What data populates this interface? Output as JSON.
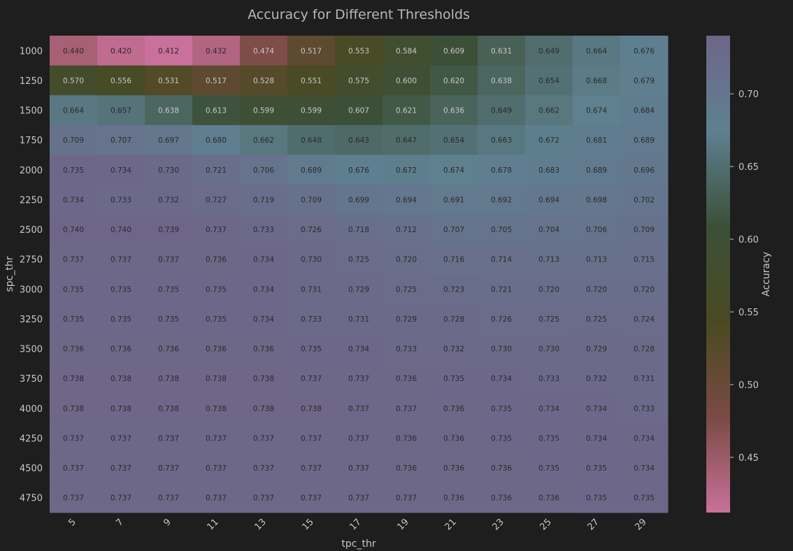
{
  "chart_data": {
    "type": "heatmap",
    "title": "Accuracy for Different Thresholds",
    "xlabel": "tpc_thr",
    "ylabel": "spc_thr",
    "x": [
      "5",
      "7",
      "9",
      "11",
      "13",
      "15",
      "17",
      "19",
      "21",
      "23",
      "25",
      "27",
      "29"
    ],
    "y": [
      "1000",
      "1250",
      "1500",
      "1750",
      "2000",
      "2250",
      "2500",
      "2750",
      "3000",
      "3250",
      "3500",
      "3750",
      "4000",
      "4250",
      "4500",
      "4750"
    ],
    "values": [
      [
        "0.440",
        "0.420",
        "0.412",
        "0.432",
        "0.474",
        "0.517",
        "0.553",
        "0.584",
        "0.609",
        "0.631",
        "0.649",
        "0.664",
        "0.676"
      ],
      [
        "0.570",
        "0.556",
        "0.531",
        "0.517",
        "0.528",
        "0.551",
        "0.575",
        "0.600",
        "0.620",
        "0.638",
        "0.654",
        "0.668",
        "0.679"
      ],
      [
        "0.664",
        "0.657",
        "0.638",
        "0.613",
        "0.599",
        "0.599",
        "0.607",
        "0.621",
        "0.636",
        "0.649",
        "0.662",
        "0.674",
        "0.684"
      ],
      [
        "0.709",
        "0.707",
        "0.697",
        "0.680",
        "0.662",
        "0.648",
        "0.643",
        "0.647",
        "0.654",
        "0.663",
        "0.672",
        "0.681",
        "0.689"
      ],
      [
        "0.735",
        "0.734",
        "0.730",
        "0.721",
        "0.706",
        "0.689",
        "0.676",
        "0.672",
        "0.674",
        "0.678",
        "0.683",
        "0.689",
        "0.696"
      ],
      [
        "0.734",
        "0.733",
        "0.732",
        "0.727",
        "0.719",
        "0.709",
        "0.699",
        "0.694",
        "0.691",
        "0.692",
        "0.694",
        "0.698",
        "0.702"
      ],
      [
        "0.740",
        "0.740",
        "0.739",
        "0.737",
        "0.733",
        "0.726",
        "0.718",
        "0.712",
        "0.707",
        "0.705",
        "0.704",
        "0.706",
        "0.709"
      ],
      [
        "0.737",
        "0.737",
        "0.737",
        "0.736",
        "0.734",
        "0.730",
        "0.725",
        "0.720",
        "0.716",
        "0.714",
        "0.713",
        "0.713",
        "0.715"
      ],
      [
        "0.735",
        "0.735",
        "0.735",
        "0.735",
        "0.734",
        "0.731",
        "0.729",
        "0.725",
        "0.723",
        "0.721",
        "0.720",
        "0.720",
        "0.720"
      ],
      [
        "0.735",
        "0.735",
        "0.735",
        "0.735",
        "0.734",
        "0.733",
        "0.731",
        "0.729",
        "0.728",
        "0.726",
        "0.725",
        "0.725",
        "0.724"
      ],
      [
        "0.736",
        "0.736",
        "0.736",
        "0.736",
        "0.736",
        "0.735",
        "0.734",
        "0.733",
        "0.732",
        "0.730",
        "0.730",
        "0.729",
        "0.728"
      ],
      [
        "0.738",
        "0.738",
        "0.738",
        "0.738",
        "0.738",
        "0.737",
        "0.737",
        "0.736",
        "0.735",
        "0.734",
        "0.733",
        "0.732",
        "0.731"
      ],
      [
        "0.738",
        "0.738",
        "0.738",
        "0.738",
        "0.738",
        "0.738",
        "0.737",
        "0.737",
        "0.736",
        "0.735",
        "0.734",
        "0.734",
        "0.733"
      ],
      [
        "0.737",
        "0.737",
        "0.737",
        "0.737",
        "0.737",
        "0.737",
        "0.737",
        "0.736",
        "0.736",
        "0.735",
        "0.735",
        "0.734",
        "0.734"
      ],
      [
        "0.737",
        "0.737",
        "0.737",
        "0.737",
        "0.737",
        "0.737",
        "0.737",
        "0.736",
        "0.736",
        "0.736",
        "0.735",
        "0.735",
        "0.734"
      ],
      [
        "0.737",
        "0.737",
        "0.737",
        "0.737",
        "0.737",
        "0.737",
        "0.737",
        "0.737",
        "0.736",
        "0.736",
        "0.736",
        "0.735",
        "0.735"
      ]
    ],
    "colorbar": {
      "label": "Accuracy",
      "range": [
        0.412,
        0.74
      ],
      "ticks": [
        "0.45",
        "0.50",
        "0.55",
        "0.60",
        "0.65",
        "0.70"
      ]
    },
    "colors": {
      "background": "#1e1e1e",
      "scale": [
        "#c9719a",
        "#7a4a44",
        "#4a4a22",
        "#3c5038",
        "#5e8090",
        "#6e6688"
      ],
      "text": "#c8c8c8"
    }
  }
}
